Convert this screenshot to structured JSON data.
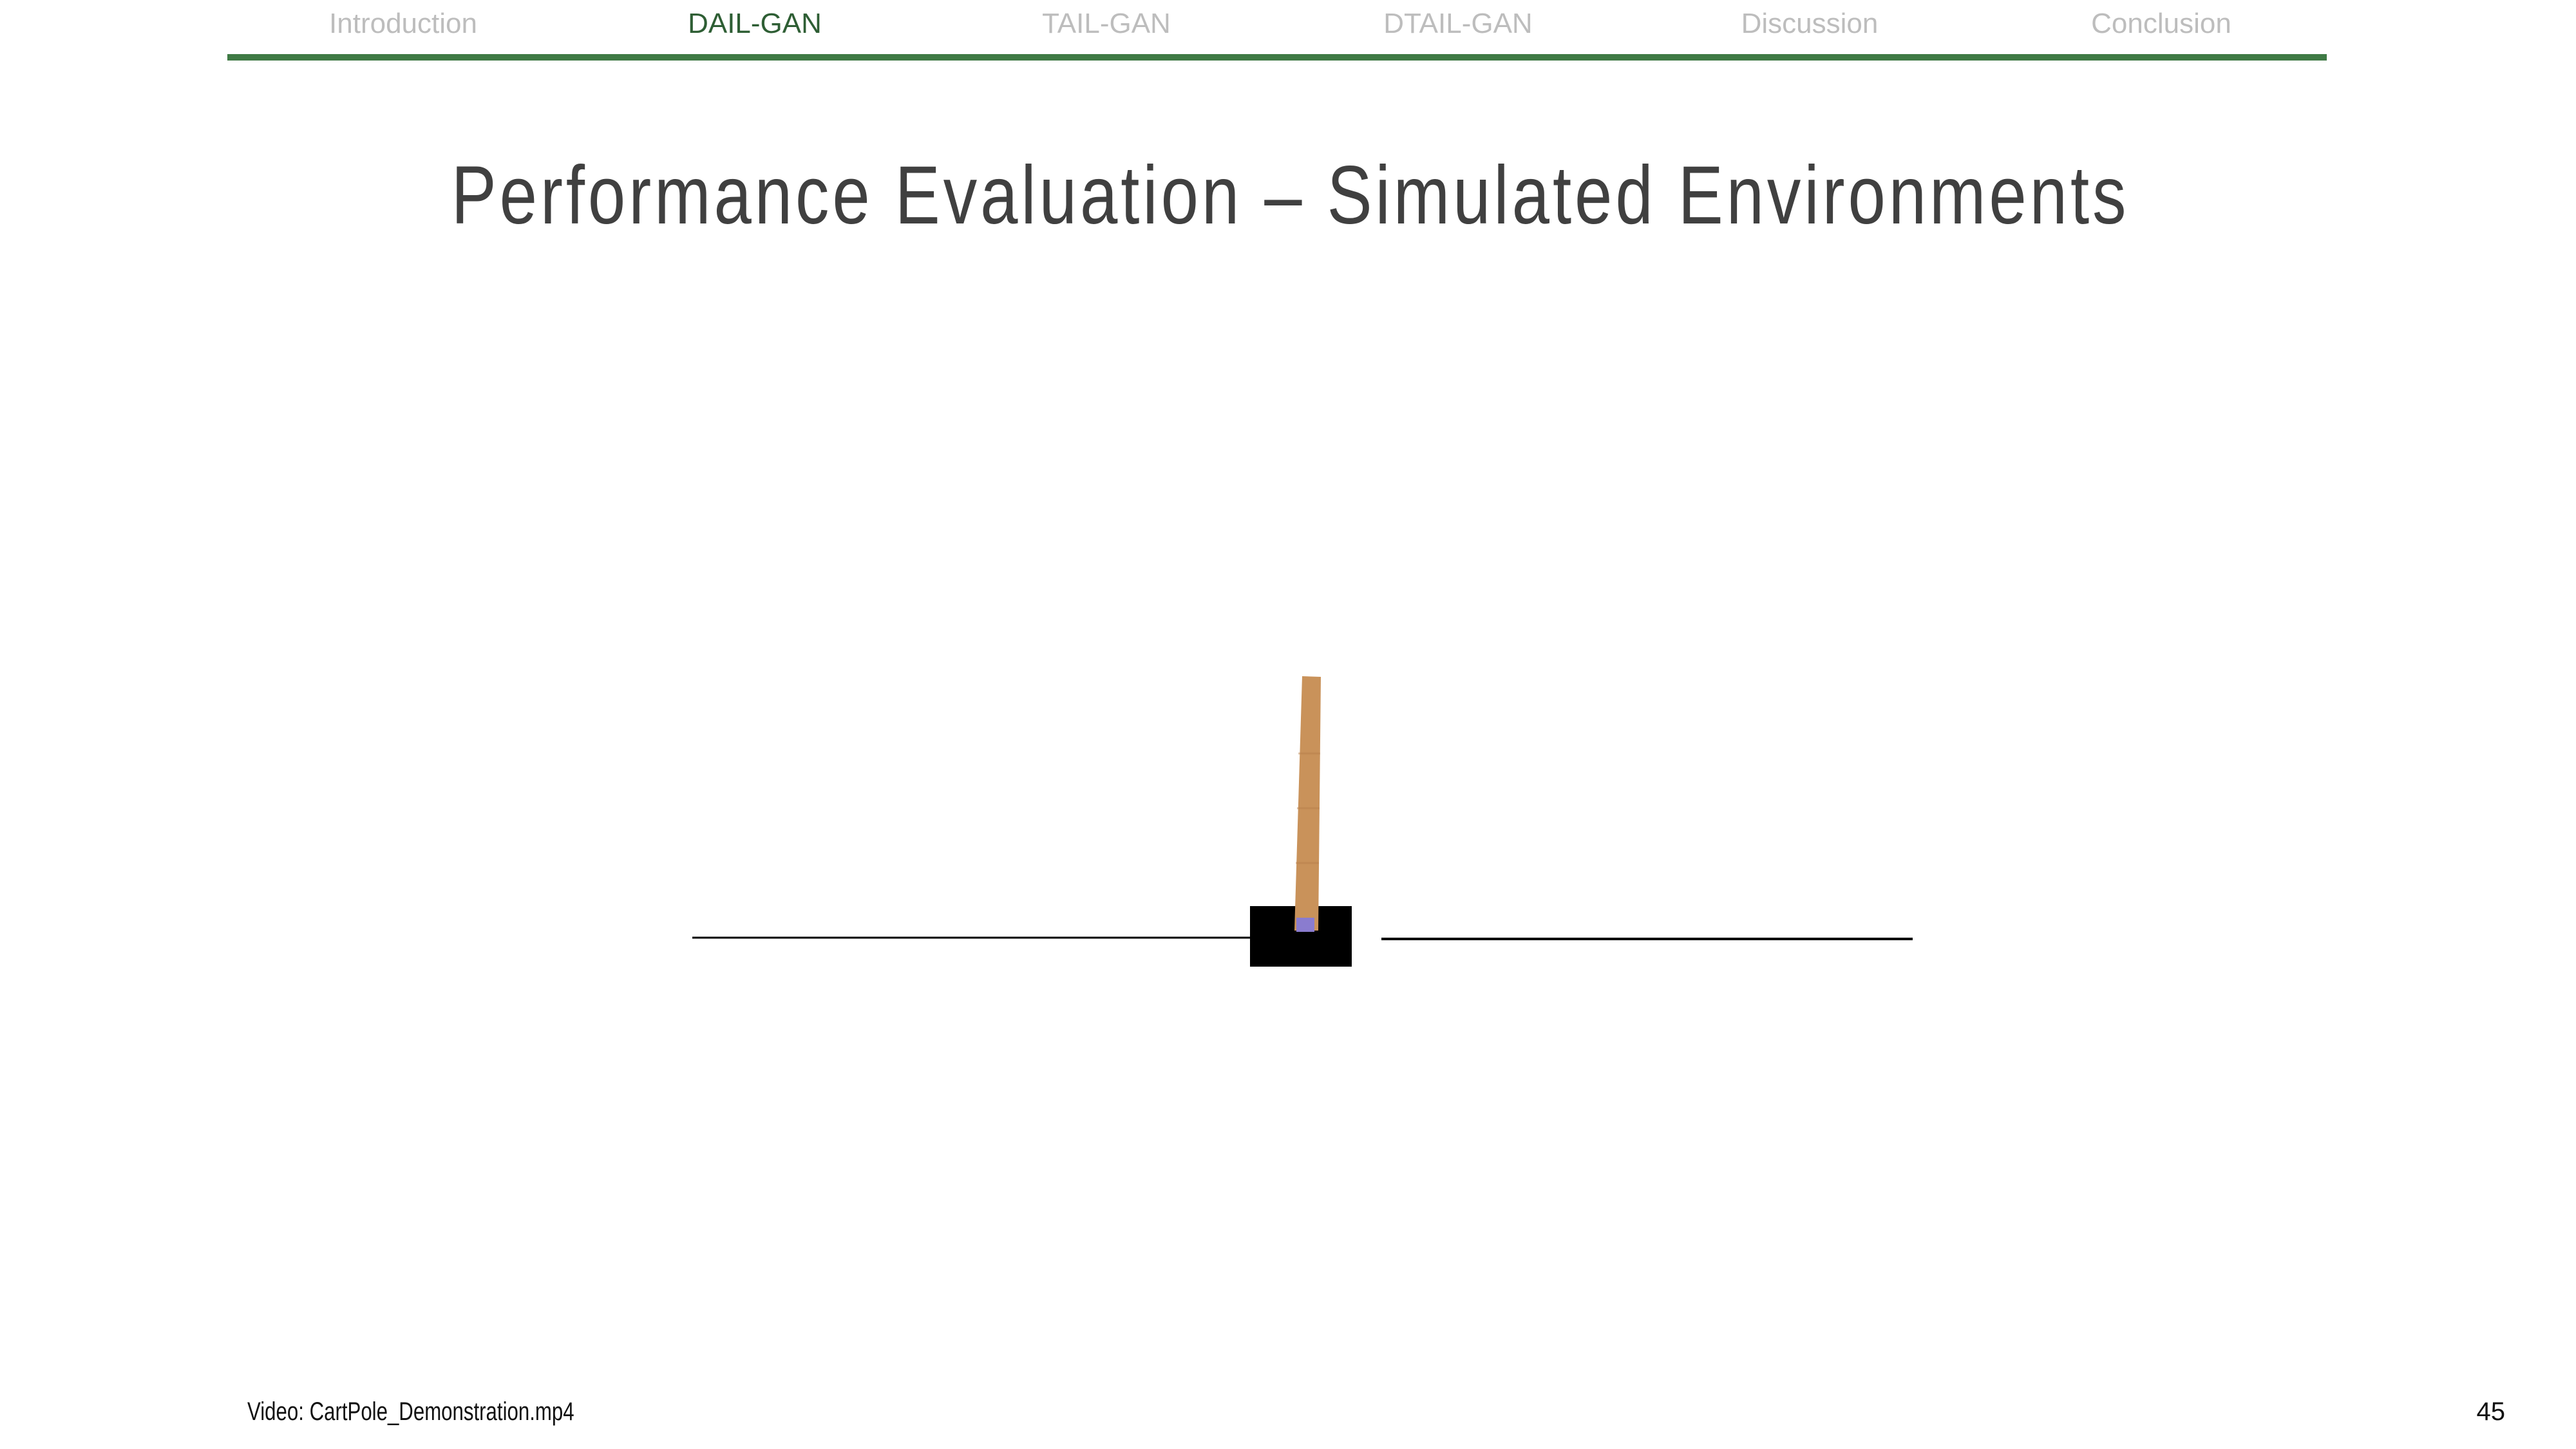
{
  "nav": {
    "items": [
      {
        "label": "Introduction"
      },
      {
        "label": "DAIL-GAN"
      },
      {
        "label": "TAIL-GAN"
      },
      {
        "label": "DTAIL-GAN"
      },
      {
        "label": "Discussion"
      },
      {
        "label": "Conclusion"
      }
    ],
    "active_index": 1,
    "colors": {
      "inactive": "#bdbdbd",
      "active": "#2e5e34",
      "rule": "#3f7a45"
    }
  },
  "slide": {
    "title": "Performance Evaluation – Simulated Environments",
    "video_caption": "Video: CartPole_Demonstration.mp4",
    "page_number": "45"
  },
  "cartpole": {
    "colors": {
      "track": "#000000",
      "cart": "#000000",
      "pole": "#c9925a",
      "axle": "#8a7ccf"
    }
  }
}
